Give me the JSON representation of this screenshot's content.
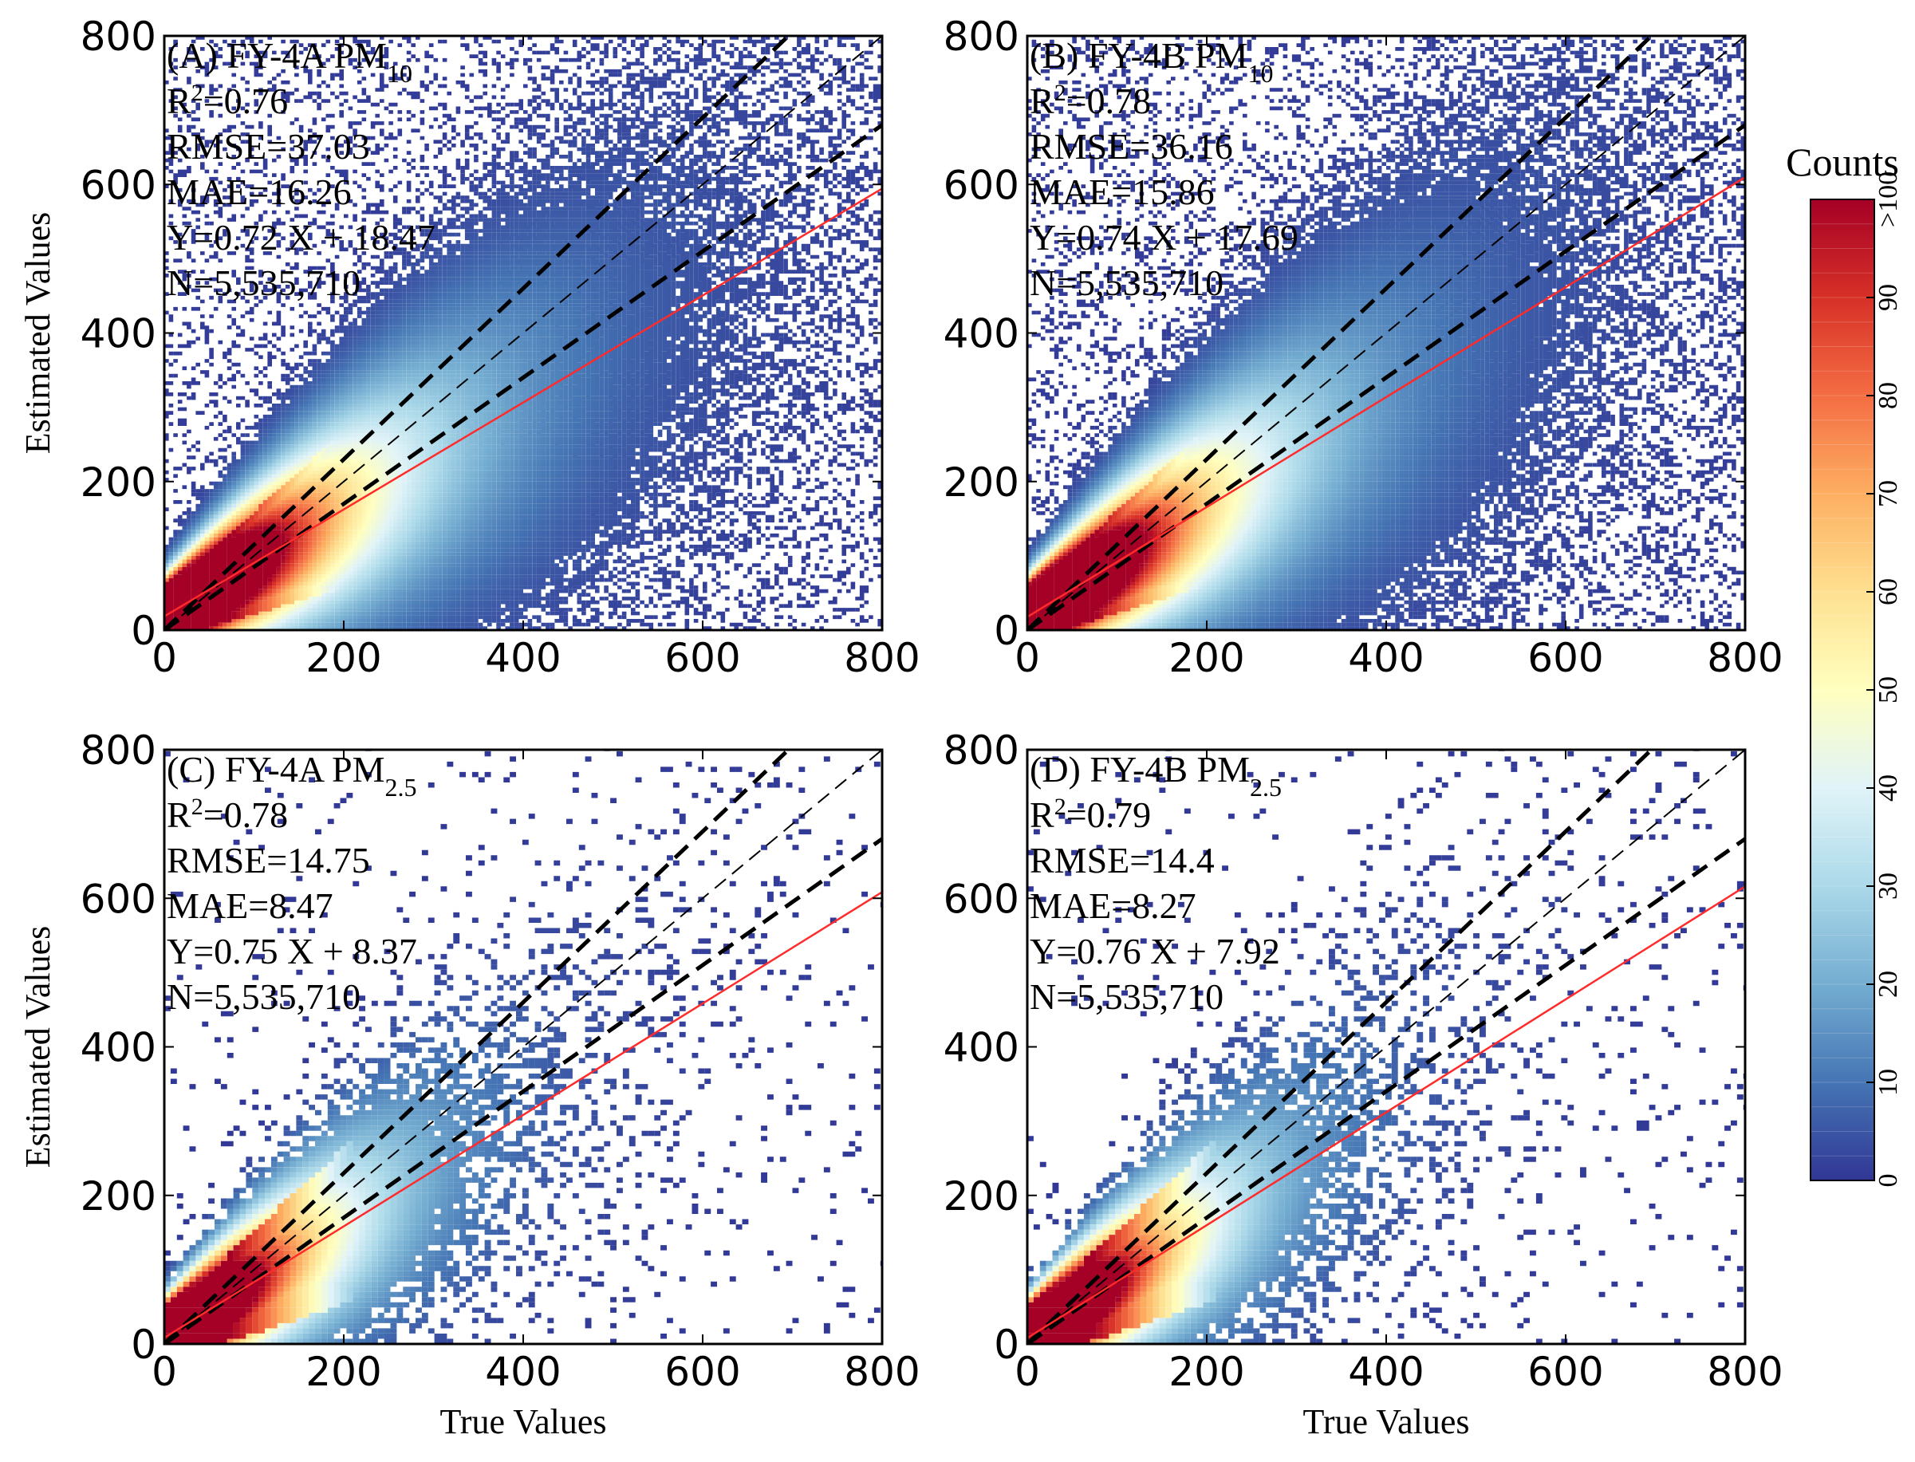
{
  "chart_data": [
    {
      "type": "heatmap",
      "panel_label": "(A) FY-4A PM",
      "species_subscript": "10",
      "stats": [
        "R|2|=0.76",
        "RMSE=37.03",
        "MAE=16.26",
        "Y=0.72 X + 18.47",
        "N=5,535,710"
      ],
      "fit": {
        "slope": 0.72,
        "intercept": 18.47
      },
      "xlabel": "",
      "ylabel": "Estimated Values",
      "xlim": [
        0,
        800
      ],
      "ylim": [
        0,
        800
      ],
      "ticks": [
        "0",
        "200",
        "400",
        "600",
        "800"
      ],
      "ref_lines": {
        "one_to_one": 1.0,
        "upper": 1.15,
        "lower": 0.85
      }
    },
    {
      "type": "heatmap",
      "panel_label": "(B) FY-4B PM",
      "species_subscript": "10",
      "stats": [
        "R|2|=0.78",
        "RMSE=36.16",
        "MAE=15.86",
        "Y=0.74 X + 17.69",
        "N=5,535,710"
      ],
      "fit": {
        "slope": 0.74,
        "intercept": 17.69
      },
      "xlabel": "",
      "ylabel": "",
      "xlim": [
        0,
        800
      ],
      "ylim": [
        0,
        800
      ],
      "ticks": [
        "0",
        "200",
        "400",
        "600",
        "800"
      ],
      "ref_lines": {
        "one_to_one": 1.0,
        "upper": 1.15,
        "lower": 0.85
      }
    },
    {
      "type": "heatmap",
      "panel_label": "(C) FY-4A PM",
      "species_subscript": "2.5",
      "stats": [
        "R|2|=0.78",
        "RMSE=14.75",
        "MAE=8.47",
        "Y=0.75 X + 8.37",
        "N=5,535,710"
      ],
      "fit": {
        "slope": 0.75,
        "intercept": 8.37
      },
      "xlabel": "True Values",
      "ylabel": "Estimated Values",
      "xlim": [
        0,
        800
      ],
      "ylim": [
        0,
        800
      ],
      "ticks": [
        "0",
        "200",
        "400",
        "600",
        "800"
      ],
      "ref_lines": {
        "one_to_one": 1.0,
        "upper": 1.15,
        "lower": 0.85
      }
    },
    {
      "type": "heatmap",
      "panel_label": "(D) FY-4B PM",
      "species_subscript": "2.5",
      "stats": [
        "R|2|=0.79",
        "RMSE=14.4",
        "MAE=8.27",
        "Y=0.76 X + 7.92",
        "N=5,535,710"
      ],
      "fit": {
        "slope": 0.76,
        "intercept": 7.92
      },
      "xlabel": "True Values",
      "ylabel": "",
      "xlim": [
        0,
        800
      ],
      "ylim": [
        0,
        800
      ],
      "ticks": [
        "0",
        "200",
        "400",
        "600",
        "800"
      ],
      "ref_lines": {
        "one_to_one": 1.0,
        "upper": 1.15,
        "lower": 0.85
      }
    }
  ],
  "colorbar": {
    "title": "Counts",
    "range": [
      0,
      100
    ],
    "ticks": [
      "0",
      "10",
      "20",
      "30",
      "40",
      "50",
      "60",
      "70",
      "80",
      "90",
      ">100"
    ],
    "colormap": [
      "#313695",
      "#4575b4",
      "#74add1",
      "#abd9e9",
      "#e0f3f8",
      "#ffffbf",
      "#fee090",
      "#fdae61",
      "#f46d43",
      "#d73027",
      "#a50026"
    ]
  },
  "colors": {
    "fit_line": "#ff2a2a",
    "ref_lines": "#000000"
  }
}
